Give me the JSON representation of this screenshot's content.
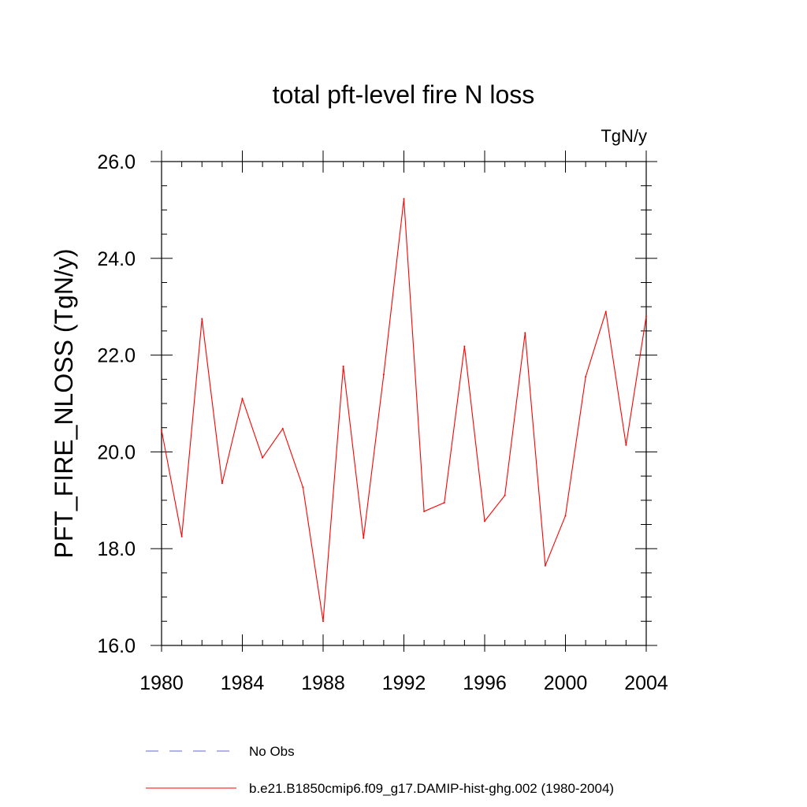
{
  "chart_data": {
    "type": "line",
    "title": "total pft-level fire N loss",
    "units": "TgN/y",
    "ylabel": "PFT_FIRE_NLOSS  (TgN/y)",
    "xlabel": "",
    "xlim": [
      1980,
      2004
    ],
    "ylim": [
      16.0,
      26.0
    ],
    "x_ticks": [
      1980,
      1984,
      1988,
      1992,
      1996,
      2000,
      2004
    ],
    "x_tick_labels": [
      "1980",
      "1984",
      "1988",
      "1992",
      "1996",
      "2000",
      "2004"
    ],
    "y_ticks": [
      16.0,
      18.0,
      20.0,
      22.0,
      24.0,
      26.0
    ],
    "y_tick_labels": [
      "16.0",
      "18.0",
      "20.0",
      "22.0",
      "24.0",
      "26.0"
    ],
    "grid": false,
    "legend_position": "bottom",
    "series": [
      {
        "name": "No Obs",
        "style": "dashed",
        "color": "#6666cc",
        "x": [],
        "values": []
      },
      {
        "name": "b.e21.B1850cmip6.f09_g17.DAMIP-hist-ghg.002 (1980-2004)",
        "style": "solid",
        "color": "#ff0000",
        "x": [
          1980,
          1981,
          1982,
          1983,
          1984,
          1985,
          1986,
          1987,
          1988,
          1989,
          1990,
          1991,
          1992,
          1993,
          1994,
          1995,
          1996,
          1997,
          1998,
          1999,
          2000,
          2001,
          2002,
          2003,
          2004
        ],
        "values": [
          20.45,
          18.25,
          22.75,
          19.35,
          21.1,
          19.88,
          20.48,
          19.27,
          16.5,
          21.77,
          18.22,
          21.6,
          25.23,
          18.77,
          18.95,
          22.18,
          18.57,
          19.1,
          22.46,
          17.65,
          18.68,
          21.55,
          22.9,
          20.14,
          22.8
        ]
      }
    ]
  }
}
